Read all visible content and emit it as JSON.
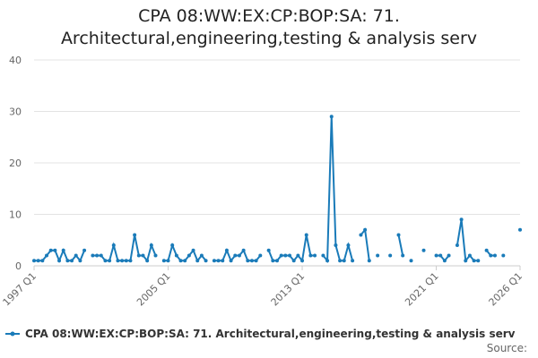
{
  "chart_data": {
    "type": "line",
    "title": "CPA 08:WW:EX:CP:BOP:SA: 71. Architectural,engineering,testing & analysis serv",
    "categories": [
      "1997 Q1",
      null,
      null,
      null,
      null,
      null,
      null,
      null,
      null,
      null,
      null,
      null,
      null,
      null,
      null,
      null,
      null,
      null,
      null,
      null,
      null,
      null,
      null,
      null,
      null,
      null,
      null,
      null,
      null,
      null,
      null,
      null,
      "2005 Q1",
      null,
      null,
      null,
      null,
      null,
      null,
      null,
      null,
      null,
      null,
      null,
      null,
      null,
      null,
      null,
      null,
      null,
      null,
      null,
      null,
      null,
      null,
      null,
      null,
      null,
      null,
      null,
      null,
      null,
      null,
      null,
      "2013 Q1",
      null,
      null,
      null,
      null,
      null,
      null,
      null,
      null,
      null,
      null,
      null,
      null,
      null,
      null,
      null,
      null,
      null,
      null,
      null,
      null,
      null,
      null,
      null,
      null,
      null,
      null,
      null,
      null,
      null,
      null,
      null,
      "2021 Q1",
      null,
      null,
      null,
      null,
      null,
      null,
      null,
      null,
      null,
      null,
      null,
      null,
      null,
      null,
      null,
      null,
      null,
      null,
      null,
      "2026 Q1"
    ],
    "series": [
      {
        "name": "CPA 08:WW:EX:CP:BOP:SA: 71. Architectural,engineering,testing & analysis serv",
        "color": "#1a7bb9",
        "values": [
          1,
          1,
          1,
          2,
          3,
          3,
          1,
          3,
          1,
          1,
          2,
          1,
          3,
          null,
          2,
          2,
          2,
          1,
          1,
          4,
          1,
          1,
          1,
          1,
          6,
          2,
          2,
          1,
          4,
          2,
          null,
          1,
          1,
          4,
          2,
          1,
          1,
          2,
          3,
          1,
          2,
          1,
          null,
          1,
          1,
          1,
          3,
          1,
          2,
          2,
          3,
          1,
          1,
          1,
          2,
          null,
          3,
          1,
          1,
          2,
          2,
          2,
          1,
          2,
          1,
          6,
          2,
          2,
          null,
          2,
          1,
          29,
          4,
          1,
          1,
          4,
          1,
          null,
          6,
          7,
          1,
          null,
          2,
          null,
          null,
          2,
          null,
          6,
          2,
          null,
          1,
          null,
          null,
          3,
          null,
          null,
          2,
          2,
          1,
          2,
          null,
          4,
          9,
          1,
          2,
          1,
          1,
          null,
          3,
          2,
          2,
          null,
          2,
          null,
          null,
          null,
          7
        ]
      }
    ],
    "ylim": [
      0,
      40
    ],
    "yticks": [
      0,
      10,
      20,
      30,
      40
    ],
    "grid": true,
    "source_label": "Source:"
  }
}
